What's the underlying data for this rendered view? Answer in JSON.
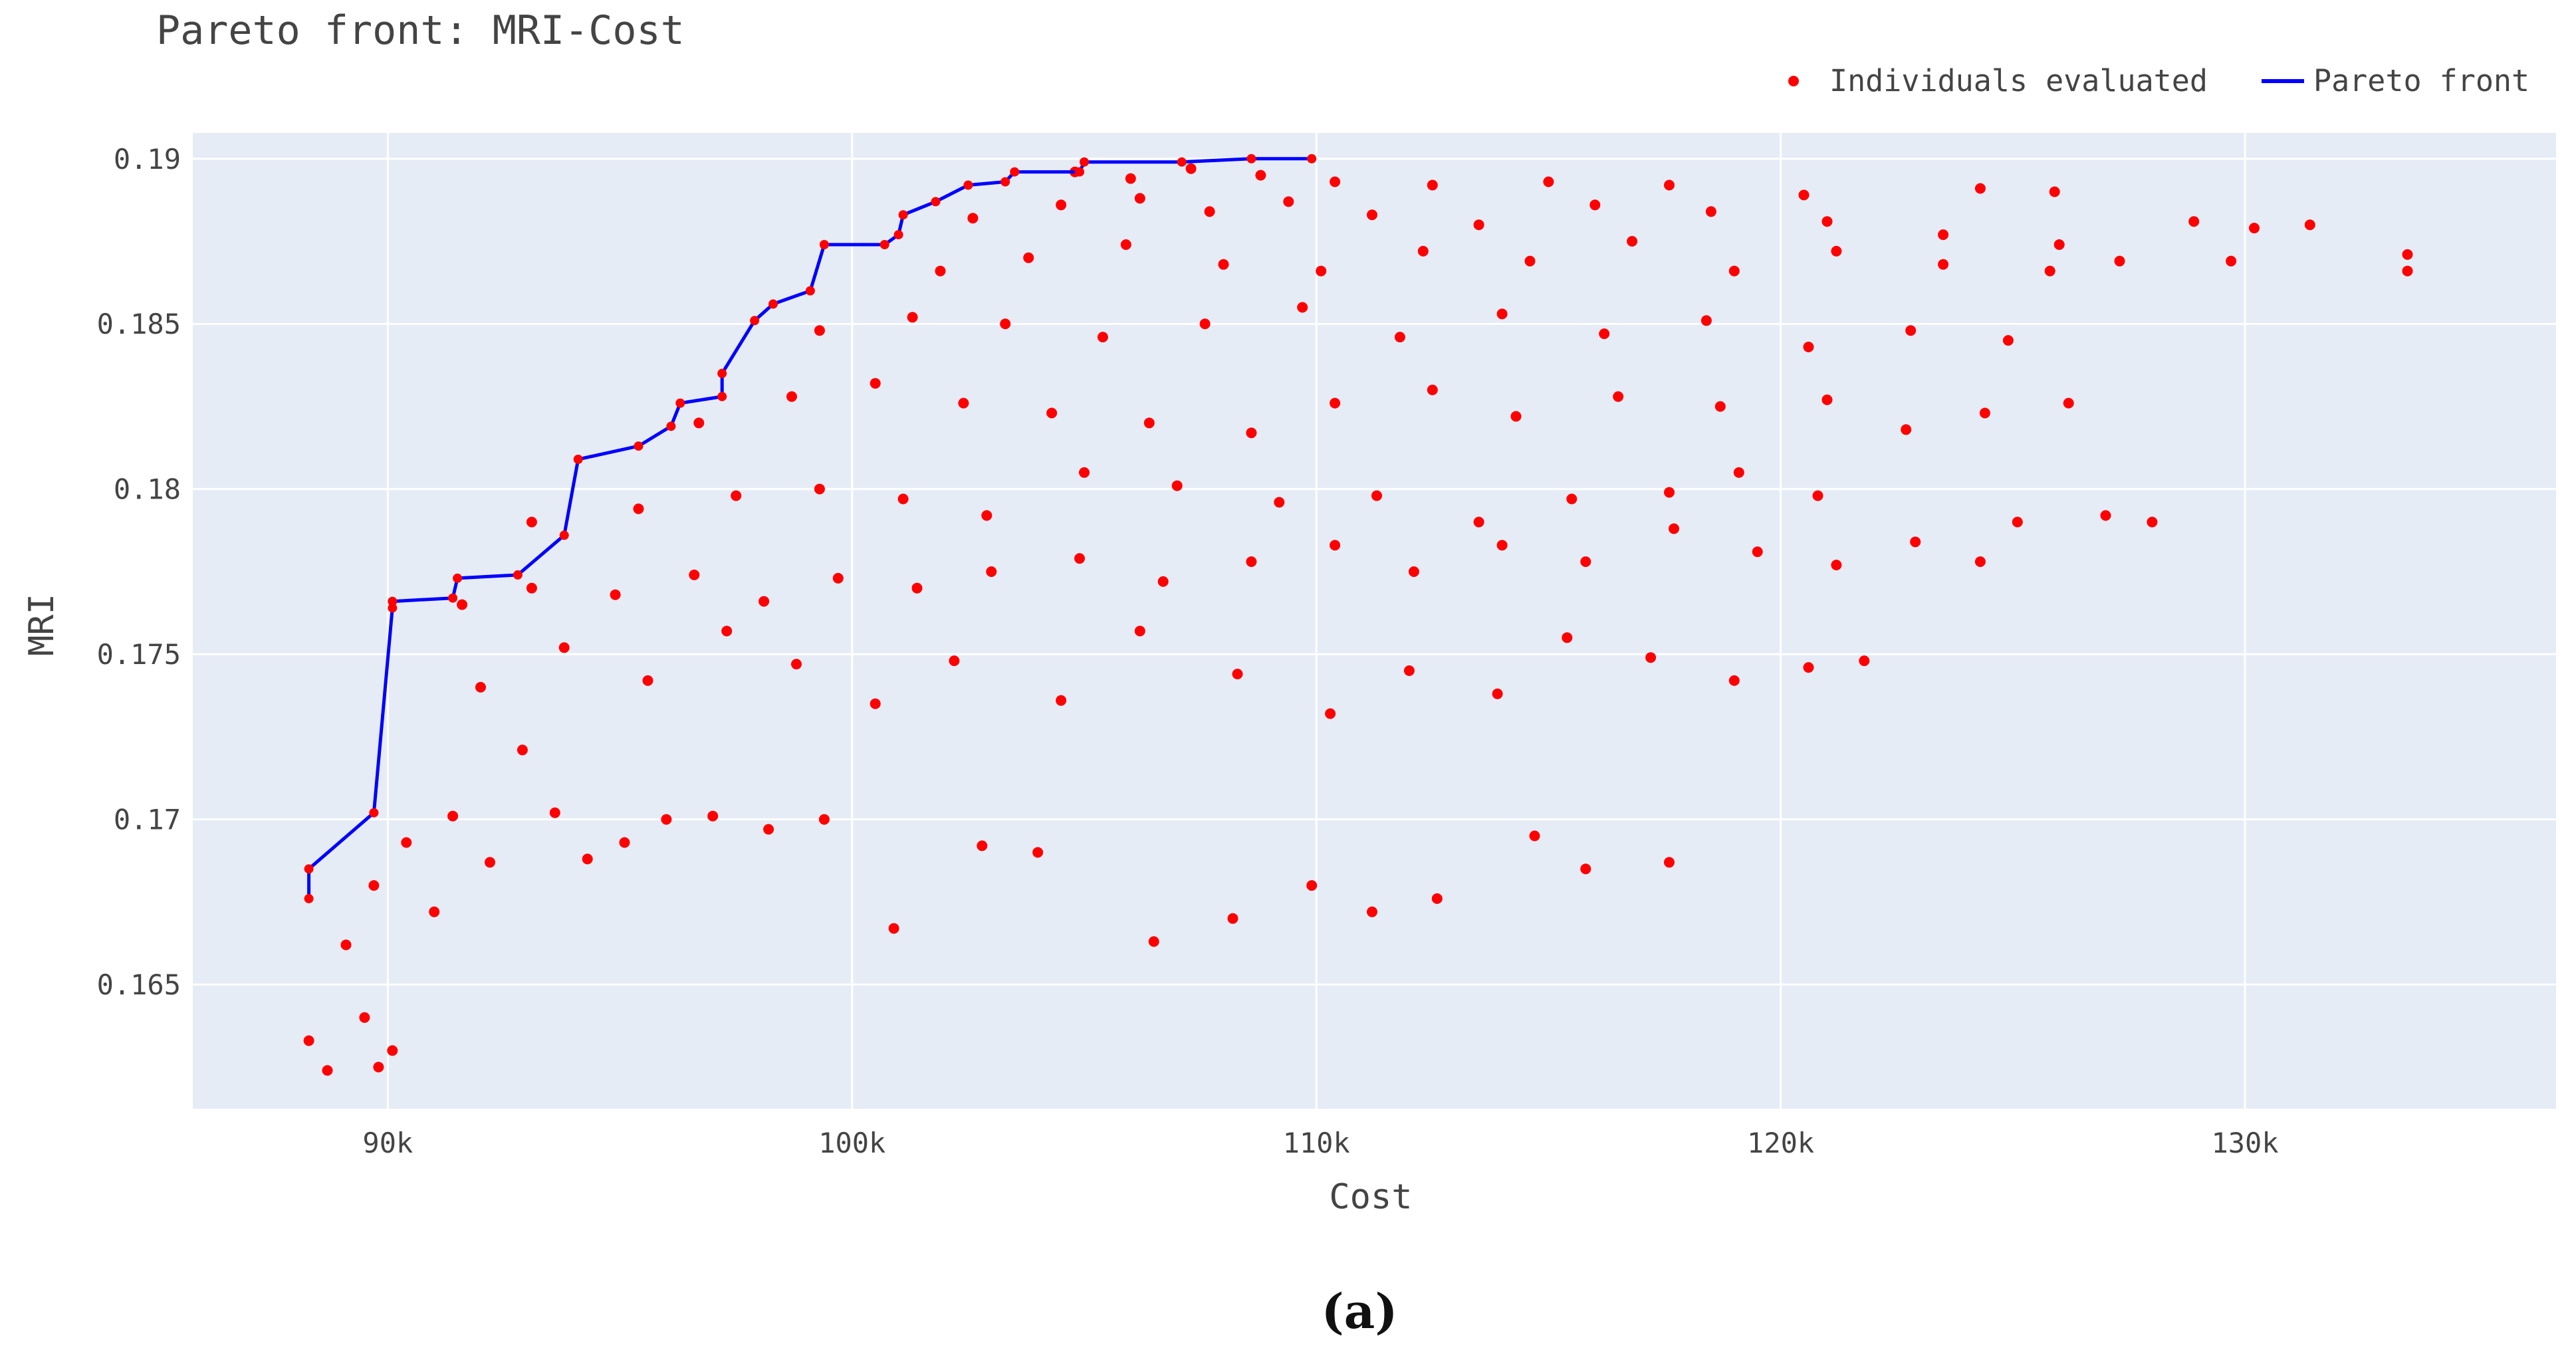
{
  "chart_data": {
    "type": "scatter",
    "title": "Pareto front: MRI-Cost",
    "xlabel": "Cost",
    "ylabel": "MRI",
    "xlim": [
      85800,
      136700
    ],
    "ylim": [
      0.16124,
      0.19078
    ],
    "x_ticks": [
      90000,
      100000,
      110000,
      120000,
      130000
    ],
    "x_tick_labels": [
      "90k",
      "100k",
      "110k",
      "120k",
      "130k"
    ],
    "y_ticks": [
      0.165,
      0.17,
      0.175,
      0.18,
      0.185,
      0.19
    ],
    "y_tick_labels": [
      "0.165",
      "0.17",
      "0.175",
      "0.18",
      "0.185",
      "0.19"
    ],
    "grid": true,
    "legend_position": "top-right",
    "caption": "(a)",
    "colors": {
      "plot_background": "#e5ecf6",
      "grid": "#ffffff",
      "scatter": "#ff0000",
      "pareto": "#0000ff",
      "text": "#444444"
    },
    "series": [
      {
        "name": "Individuals evaluated",
        "type": "scatter",
        "color": "#ff0000",
        "points_shown": "approximately 4000 points spread over cost 88k-134k and MRI 0.162-0.190, densest along the upper band near MRI 0.188 between 101k and 112k",
        "points": [
          [
            88300,
            0.1633
          ],
          [
            88700,
            0.1624
          ],
          [
            89500,
            0.164
          ],
          [
            89800,
            0.1625
          ],
          [
            90100,
            0.163
          ],
          [
            89100,
            0.1662
          ],
          [
            89700,
            0.168
          ],
          [
            90400,
            0.1693
          ],
          [
            91000,
            0.1672
          ],
          [
            91400,
            0.1701
          ],
          [
            92200,
            0.1687
          ],
          [
            92900,
            0.1721
          ],
          [
            93600,
            0.1702
          ],
          [
            94300,
            0.1688
          ],
          [
            95100,
            0.1693
          ],
          [
            96000,
            0.17
          ],
          [
            97000,
            0.1701
          ],
          [
            98200,
            0.1697
          ],
          [
            99400,
            0.17
          ],
          [
            100900,
            0.1667
          ],
          [
            102800,
            0.1692
          ],
          [
            104000,
            0.169
          ],
          [
            106500,
            0.1663
          ],
          [
            108200,
            0.167
          ],
          [
            109900,
            0.168
          ],
          [
            111200,
            0.1672
          ],
          [
            112600,
            0.1676
          ],
          [
            114700,
            0.1695
          ],
          [
            115800,
            0.1685
          ],
          [
            117600,
            0.1687
          ],
          [
            92000,
            0.174
          ],
          [
            93800,
            0.1752
          ],
          [
            95600,
            0.1742
          ],
          [
            97300,
            0.1757
          ],
          [
            98800,
            0.1747
          ],
          [
            100500,
            0.1735
          ],
          [
            102200,
            0.1748
          ],
          [
            104500,
            0.1736
          ],
          [
            106200,
            0.1757
          ],
          [
            108300,
            0.1744
          ],
          [
            110300,
            0.1732
          ],
          [
            112000,
            0.1745
          ],
          [
            113900,
            0.1738
          ],
          [
            115400,
            0.1755
          ],
          [
            117200,
            0.1749
          ],
          [
            119000,
            0.1742
          ],
          [
            120600,
            0.1746
          ],
          [
            121800,
            0.1748
          ],
          [
            91600,
            0.1765
          ],
          [
            93100,
            0.177
          ],
          [
            94900,
            0.1768
          ],
          [
            96600,
            0.1774
          ],
          [
            98100,
            0.1766
          ],
          [
            99700,
            0.1773
          ],
          [
            101400,
            0.177
          ],
          [
            103000,
            0.1775
          ],
          [
            104900,
            0.1779
          ],
          [
            106700,
            0.1772
          ],
          [
            108600,
            0.1778
          ],
          [
            110400,
            0.1783
          ],
          [
            112100,
            0.1775
          ],
          [
            114000,
            0.1783
          ],
          [
            115800,
            0.1778
          ],
          [
            117700,
            0.1788
          ],
          [
            119500,
            0.1781
          ],
          [
            121200,
            0.1777
          ],
          [
            122900,
            0.1784
          ],
          [
            124300,
            0.1778
          ],
          [
            125100,
            0.179
          ],
          [
            127000,
            0.1792
          ],
          [
            128000,
            0.179
          ],
          [
            93100,
            0.179
          ],
          [
            95400,
            0.1794
          ],
          [
            97500,
            0.1798
          ],
          [
            99300,
            0.18
          ],
          [
            101100,
            0.1797
          ],
          [
            102900,
            0.1792
          ],
          [
            105000,
            0.1805
          ],
          [
            107000,
            0.1801
          ],
          [
            109200,
            0.1796
          ],
          [
            111300,
            0.1798
          ],
          [
            113500,
            0.179
          ],
          [
            115500,
            0.1797
          ],
          [
            117600,
            0.1799
          ],
          [
            119100,
            0.1805
          ],
          [
            120800,
            0.1798
          ],
          [
            96700,
            0.182
          ],
          [
            98700,
            0.1828
          ],
          [
            100500,
            0.1832
          ],
          [
            102400,
            0.1826
          ],
          [
            104300,
            0.1823
          ],
          [
            106400,
            0.182
          ],
          [
            108600,
            0.1817
          ],
          [
            110400,
            0.1826
          ],
          [
            112500,
            0.183
          ],
          [
            114300,
            0.1822
          ],
          [
            116500,
            0.1828
          ],
          [
            118700,
            0.1825
          ],
          [
            121000,
            0.1827
          ],
          [
            122700,
            0.1818
          ],
          [
            124400,
            0.1823
          ],
          [
            126200,
            0.1826
          ],
          [
            99300,
            0.1848
          ],
          [
            101300,
            0.1852
          ],
          [
            103300,
            0.185
          ],
          [
            105400,
            0.1846
          ],
          [
            107600,
            0.185
          ],
          [
            109700,
            0.1855
          ],
          [
            111800,
            0.1846
          ],
          [
            114000,
            0.1853
          ],
          [
            116200,
            0.1847
          ],
          [
            118400,
            0.1851
          ],
          [
            120600,
            0.1843
          ],
          [
            122800,
            0.1848
          ],
          [
            124900,
            0.1845
          ],
          [
            101900,
            0.1866
          ],
          [
            103800,
            0.187
          ],
          [
            105900,
            0.1874
          ],
          [
            108000,
            0.1868
          ],
          [
            110100,
            0.1866
          ],
          [
            112300,
            0.1872
          ],
          [
            114600,
            0.1869
          ],
          [
            116800,
            0.1875
          ],
          [
            119000,
            0.1866
          ],
          [
            121200,
            0.1872
          ],
          [
            123500,
            0.1868
          ],
          [
            125800,
            0.1866
          ],
          [
            127300,
            0.1869
          ],
          [
            129700,
            0.1869
          ],
          [
            133500,
            0.1866
          ],
          [
            102600,
            0.1882
          ],
          [
            104500,
            0.1886
          ],
          [
            106200,
            0.1888
          ],
          [
            107700,
            0.1884
          ],
          [
            109400,
            0.1887
          ],
          [
            111200,
            0.1883
          ],
          [
            113500,
            0.188
          ],
          [
            116000,
            0.1886
          ],
          [
            118500,
            0.1884
          ],
          [
            121000,
            0.1881
          ],
          [
            123500,
            0.1877
          ],
          [
            126000,
            0.1874
          ],
          [
            128900,
            0.1881
          ],
          [
            130200,
            0.1879
          ],
          [
            131400,
            0.188
          ],
          [
            133500,
            0.1871
          ],
          [
            104800,
            0.1896
          ],
          [
            106000,
            0.1894
          ],
          [
            107300,
            0.1897
          ],
          [
            108800,
            0.1895
          ],
          [
            110400,
            0.1893
          ],
          [
            112500,
            0.1892
          ],
          [
            115000,
            0.1893
          ],
          [
            117600,
            0.1892
          ],
          [
            120500,
            0.1889
          ],
          [
            124300,
            0.1891
          ],
          [
            125900,
            0.189
          ]
        ]
      },
      {
        "name": "Pareto front",
        "type": "line",
        "color": "#0000ff",
        "points": [
          [
            88300,
            0.1676
          ],
          [
            88300,
            0.1685
          ],
          [
            89700,
            0.1702
          ],
          [
            90100,
            0.1764
          ],
          [
            90100,
            0.1766
          ],
          [
            91400,
            0.1767
          ],
          [
            91500,
            0.1773
          ],
          [
            92800,
            0.1774
          ],
          [
            93800,
            0.1786
          ],
          [
            94100,
            0.1809
          ],
          [
            95400,
            0.1813
          ],
          [
            96100,
            0.1819
          ],
          [
            96300,
            0.1826
          ],
          [
            97200,
            0.1828
          ],
          [
            97200,
            0.1835
          ],
          [
            97900,
            0.1851
          ],
          [
            98300,
            0.1856
          ],
          [
            99100,
            0.186
          ],
          [
            99400,
            0.1874
          ],
          [
            100700,
            0.1874
          ],
          [
            101000,
            0.1877
          ],
          [
            101100,
            0.1883
          ],
          [
            101800,
            0.1887
          ],
          [
            102500,
            0.1892
          ],
          [
            103300,
            0.1893
          ],
          [
            103500,
            0.1896
          ],
          [
            104900,
            0.1896
          ],
          [
            105000,
            0.1899
          ],
          [
            107100,
            0.1899
          ],
          [
            108600,
            0.19
          ],
          [
            109900,
            0.19
          ]
        ]
      }
    ]
  }
}
